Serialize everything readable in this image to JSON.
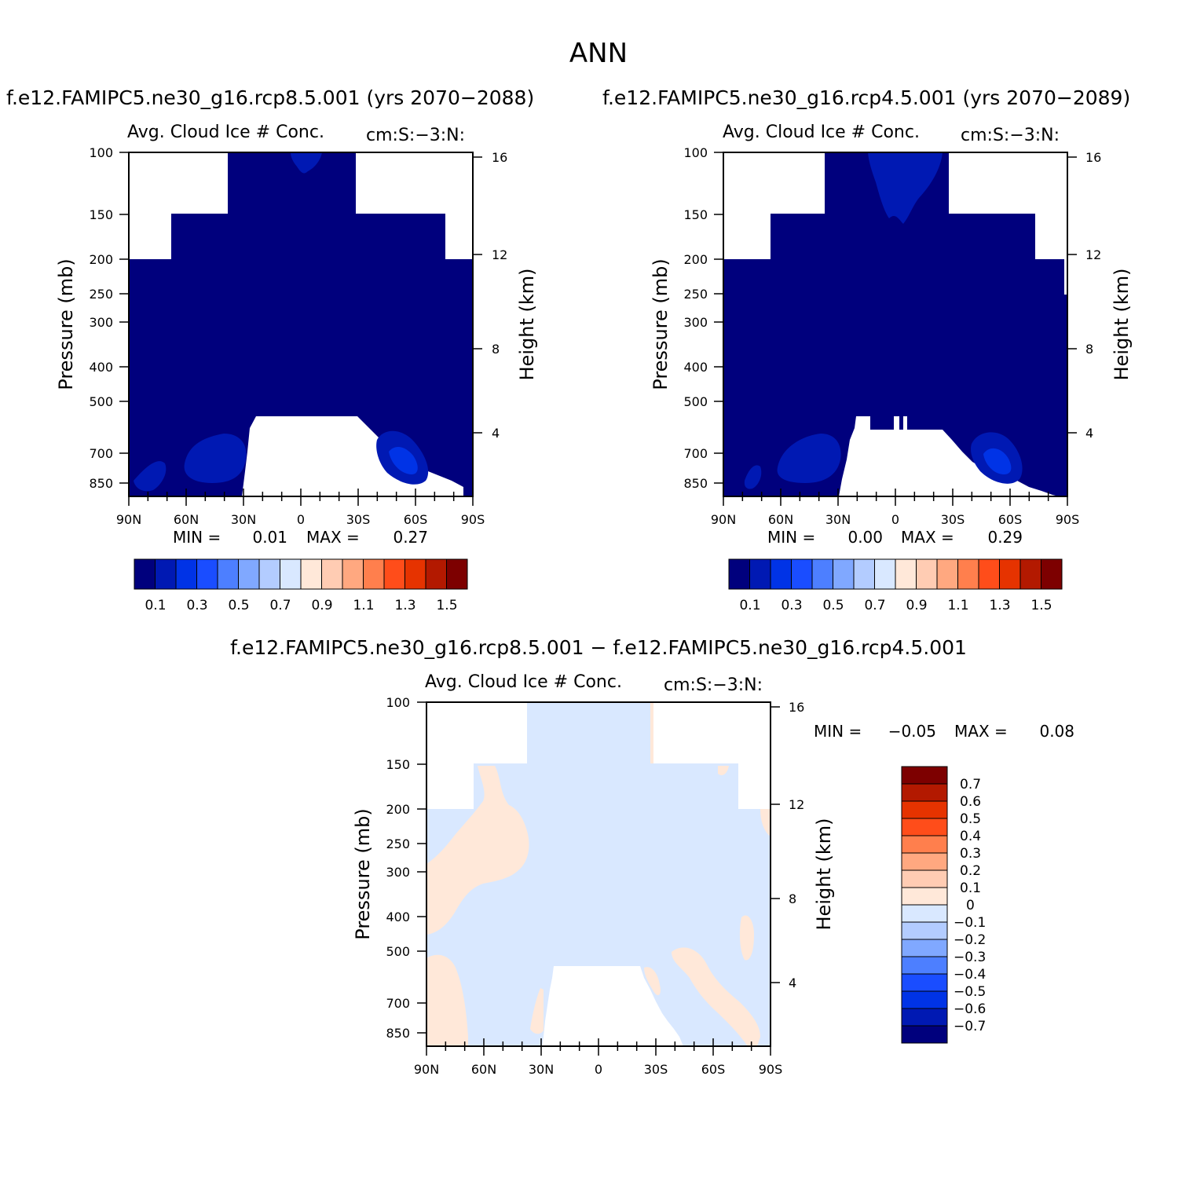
{
  "title": "ANN",
  "colors": {
    "levels": [
      "#00007d",
      "#0019b3",
      "#0033e6",
      "#1a4dff",
      "#4d7fff",
      "#80a8ff",
      "#b3ccff",
      "#d9e8ff",
      "#ffe8d9",
      "#ffccb3",
      "#ffa880",
      "#ff7f4d",
      "#ff4d1a",
      "#e63300",
      "#b31900",
      "#7d0000"
    ],
    "diff_levels": [
      "#00007d",
      "#0019b3",
      "#0033e6",
      "#1a4dff",
      "#4d7fff",
      "#80a8ff",
      "#b3ccff",
      "#d9e8ff",
      "#ffe8d9",
      "#ffccb3",
      "#ffa880",
      "#ff7f4d",
      "#ff4d1a",
      "#e63300",
      "#b31900",
      "#7d0000"
    ]
  },
  "chart_data": [
    {
      "type": "heatmap",
      "case_title": "f.e12.FAMIPC5.ne30_g16.rcp8.5.001 (yrs 2070−2088)",
      "title": "Avg. Cloud Ice # Conc.",
      "units": "cm:S:−3:N:",
      "xlabel": "",
      "ylabel": "Pressure (mb)",
      "y2label": "Height (km)",
      "x_ticks": [
        "90N",
        "60N",
        "30N",
        "0",
        "30S",
        "60S",
        "90S"
      ],
      "y_ticks": [
        100,
        150,
        200,
        250,
        300,
        400,
        500,
        700,
        850
      ],
      "y2_ticks": [
        16,
        12,
        8,
        4
      ],
      "min_label": "MIN =",
      "min": "0.01",
      "max_label": "MAX =",
      "max": "0.27",
      "colorbar_labels": [
        "0.1",
        "0.3",
        "0.5",
        "0.7",
        "0.9",
        "1.1",
        "1.3",
        "1.5"
      ]
    },
    {
      "type": "heatmap",
      "case_title": "f.e12.FAMIPC5.ne30_g16.rcp4.5.001 (yrs 2070−2089)",
      "title": "Avg. Cloud Ice # Conc.",
      "units": "cm:S:−3:N:",
      "xlabel": "",
      "ylabel": "Pressure (mb)",
      "y2label": "Height (km)",
      "x_ticks": [
        "90N",
        "60N",
        "30N",
        "0",
        "30S",
        "60S",
        "90S"
      ],
      "y_ticks": [
        100,
        150,
        200,
        250,
        300,
        400,
        500,
        700,
        850
      ],
      "y2_ticks": [
        16,
        12,
        8,
        4
      ],
      "min_label": "MIN =",
      "min": "0.00",
      "max_label": "MAX =",
      "max": "0.29",
      "colorbar_labels": [
        "0.1",
        "0.3",
        "0.5",
        "0.7",
        "0.9",
        "1.1",
        "1.3",
        "1.5"
      ]
    },
    {
      "type": "heatmap",
      "case_title": "f.e12.FAMIPC5.ne30_g16.rcp8.5.001 − f.e12.FAMIPC5.ne30_g16.rcp4.5.001",
      "title": "Avg. Cloud Ice # Conc.",
      "units": "cm:S:−3:N:",
      "xlabel": "",
      "ylabel": "Pressure (mb)",
      "y2label": "Height (km)",
      "x_ticks": [
        "90N",
        "60N",
        "30N",
        "0",
        "30S",
        "60S",
        "90S"
      ],
      "y_ticks": [
        100,
        150,
        200,
        250,
        300,
        400,
        500,
        700,
        850
      ],
      "y2_ticks": [
        16,
        12,
        8,
        4
      ],
      "min_label": "MIN =",
      "min": "−0.05",
      "max_label": "MAX =",
      "max": "0.08",
      "colorbar_labels": [
        "0.7",
        "0.6",
        "0.5",
        "0.4",
        "0.3",
        "0.2",
        "0.1",
        "0",
        "−0.1",
        "−0.2",
        "−0.3",
        "−0.4",
        "−0.5",
        "−0.6",
        "−0.7"
      ]
    }
  ]
}
